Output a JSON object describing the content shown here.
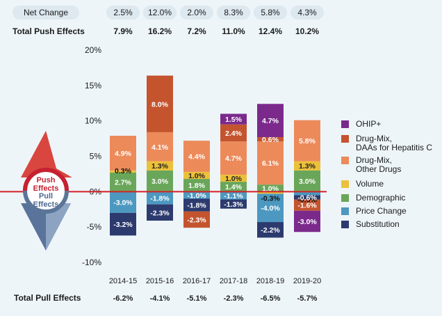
{
  "header": {
    "net_change_label": "Net Change",
    "total_push_label": "Total Push Effects",
    "total_pull_label": "Total Pull Effects"
  },
  "badge": {
    "push": "Push\nEffects",
    "pull": "Pull\nEffects"
  },
  "colors": {
    "background": "#eef5f9",
    "pill": "#dde8ef",
    "zero_line": "#d42027",
    "badge_top": "#d9463f",
    "badge_bottom": "#59739a",
    "ring_top": "#c8202f",
    "ring_bottom": "#5a7597"
  },
  "chart_data": {
    "type": "bar",
    "stacked": true,
    "title": "",
    "xlabel": "",
    "ylabel": "",
    "ylim": [
      -10,
      20
    ],
    "yticks": [
      -10,
      -5,
      0,
      5,
      10,
      15,
      20
    ],
    "ytick_labels": [
      "-10%",
      "-5%",
      "0%",
      "5%",
      "10%",
      "15%",
      "20%"
    ],
    "categories": [
      "2014-15",
      "2015-16",
      "2016-17",
      "2017-18",
      "2018-19",
      "2019-20"
    ],
    "net_change": [
      "2.5%",
      "12.0%",
      "2.0%",
      "8.3%",
      "5.8%",
      "4.3%"
    ],
    "total_push": [
      "7.9%",
      "16.2%",
      "7.2%",
      "11.0%",
      "12.4%",
      "10.2%"
    ],
    "total_pull": [
      "-6.2%",
      "-4.1%",
      "-5.1%",
      "-2.3%",
      "-6.5%",
      "-5.7%"
    ],
    "legend_position": "right",
    "series": [
      {
        "name": "OHIP+",
        "color": "#7b2a8c",
        "label_color": "#ffffff",
        "values": [
          null,
          null,
          null,
          1.5,
          4.7,
          -3.0
        ],
        "labels": [
          "",
          "",
          "",
          "1.5%",
          "4.7%",
          "-3.0%"
        ]
      },
      {
        "name": "Drug-Mix,\nDAAs for Hepatitis C",
        "color": "#c4542e",
        "label_color": "#ffffff",
        "values": [
          null,
          8.0,
          -2.3,
          2.4,
          0.6,
          -1.6
        ],
        "labels": [
          "",
          "8.0%",
          "-2.3%",
          "2.4%",
          "0.6%",
          "-1.6%"
        ]
      },
      {
        "name": "Drug-Mix,\nOther Drugs",
        "color": "#ec8a5a",
        "label_color": "#ffffff",
        "values": [
          4.9,
          4.1,
          4.4,
          4.7,
          6.1,
          5.8
        ],
        "labels": [
          "4.9%",
          "4.1%",
          "4.4%",
          "4.7%",
          "6.1%",
          "5.8%"
        ]
      },
      {
        "name": "Volume",
        "color": "#ecc13a",
        "label_color": "#222222",
        "values": [
          0.3,
          1.3,
          1.0,
          1.0,
          -0.3,
          1.3
        ],
        "labels": [
          "0.3%",
          "1.3%",
          "1.0%",
          "1.0%",
          "-0.3%",
          "1.3%"
        ]
      },
      {
        "name": "Demographic",
        "color": "#6aa65a",
        "label_color": "#ffffff",
        "values": [
          2.7,
          3.0,
          1.8,
          1.4,
          1.0,
          3.0
        ],
        "labels": [
          "2.7%",
          "3.0%",
          "1.8%",
          "1.4%",
          "1.0%",
          "3.0%"
        ]
      },
      {
        "name": "Price Change",
        "color": "#4c98c0",
        "label_color": "#ffffff",
        "values": [
          -3.0,
          -1.8,
          -1.0,
          -1.1,
          -4.0,
          -0.5
        ],
        "labels": [
          "-3.0%",
          "-1.8%",
          "-1.0%",
          "-1.1%",
          "-4.0%",
          "-0.5%"
        ]
      },
      {
        "name": "Substitution",
        "color": "#2c3a6e",
        "label_color": "#ffffff",
        "values": [
          -3.2,
          -2.3,
          -1.8,
          -1.3,
          -2.2,
          -0.6
        ],
        "labels": [
          "-3.2%",
          "-2.3%",
          "-1.8%",
          "-1.3%",
          "-2.2%",
          "-0.6%"
        ]
      }
    ]
  }
}
